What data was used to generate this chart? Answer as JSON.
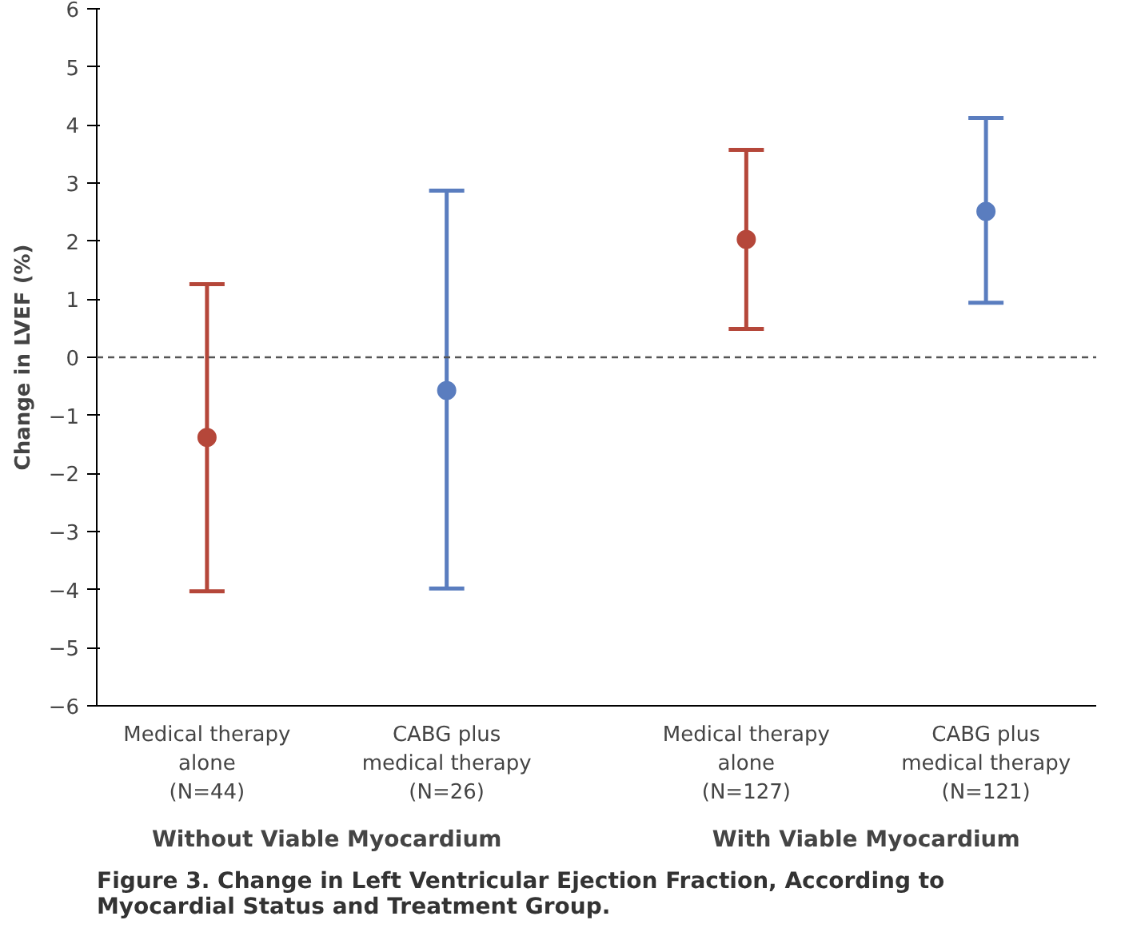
{
  "chart_data": {
    "type": "scatter",
    "title": "Figure 3. Change in Left Ventricular Ejection Fraction, According to Myocardial Status and Treatment Group.",
    "ylabel": "Change in LVEF (%)",
    "categories": [
      "Medical therapy\nalone\n(N=44)",
      "CABG plus\nmedical therapy\n(N=26)",
      "Medical therapy\nalone\n(N=127)",
      "CABG plus\nmedical therapy\n(N=121)"
    ],
    "values": [
      -1.38,
      -0.57,
      2.03,
      2.51
    ],
    "colors": [
      "#b5473a",
      "#5a7dbf",
      "#b5473a",
      "#5a7dbf"
    ],
    "errors": [
      [
        -4.03,
        1.26
      ],
      [
        -3.98,
        2.87
      ],
      [
        0.49,
        3.57
      ],
      [
        0.94,
        4.12
      ]
    ],
    "marker": "circle",
    "ylim": [
      -6,
      6
    ],
    "yticks": [
      -6,
      -5,
      -4,
      -3,
      -2,
      -1,
      0,
      1,
      2,
      3,
      4,
      5,
      6
    ],
    "ref_lines": [
      {
        "axis": "y",
        "value": 0,
        "label": null,
        "color": "#555555",
        "line_style": "dashed"
      }
    ],
    "annotations": [
      "Without Viable Myocardium",
      "With Viable Myocardium"
    ],
    "grid": false
  }
}
